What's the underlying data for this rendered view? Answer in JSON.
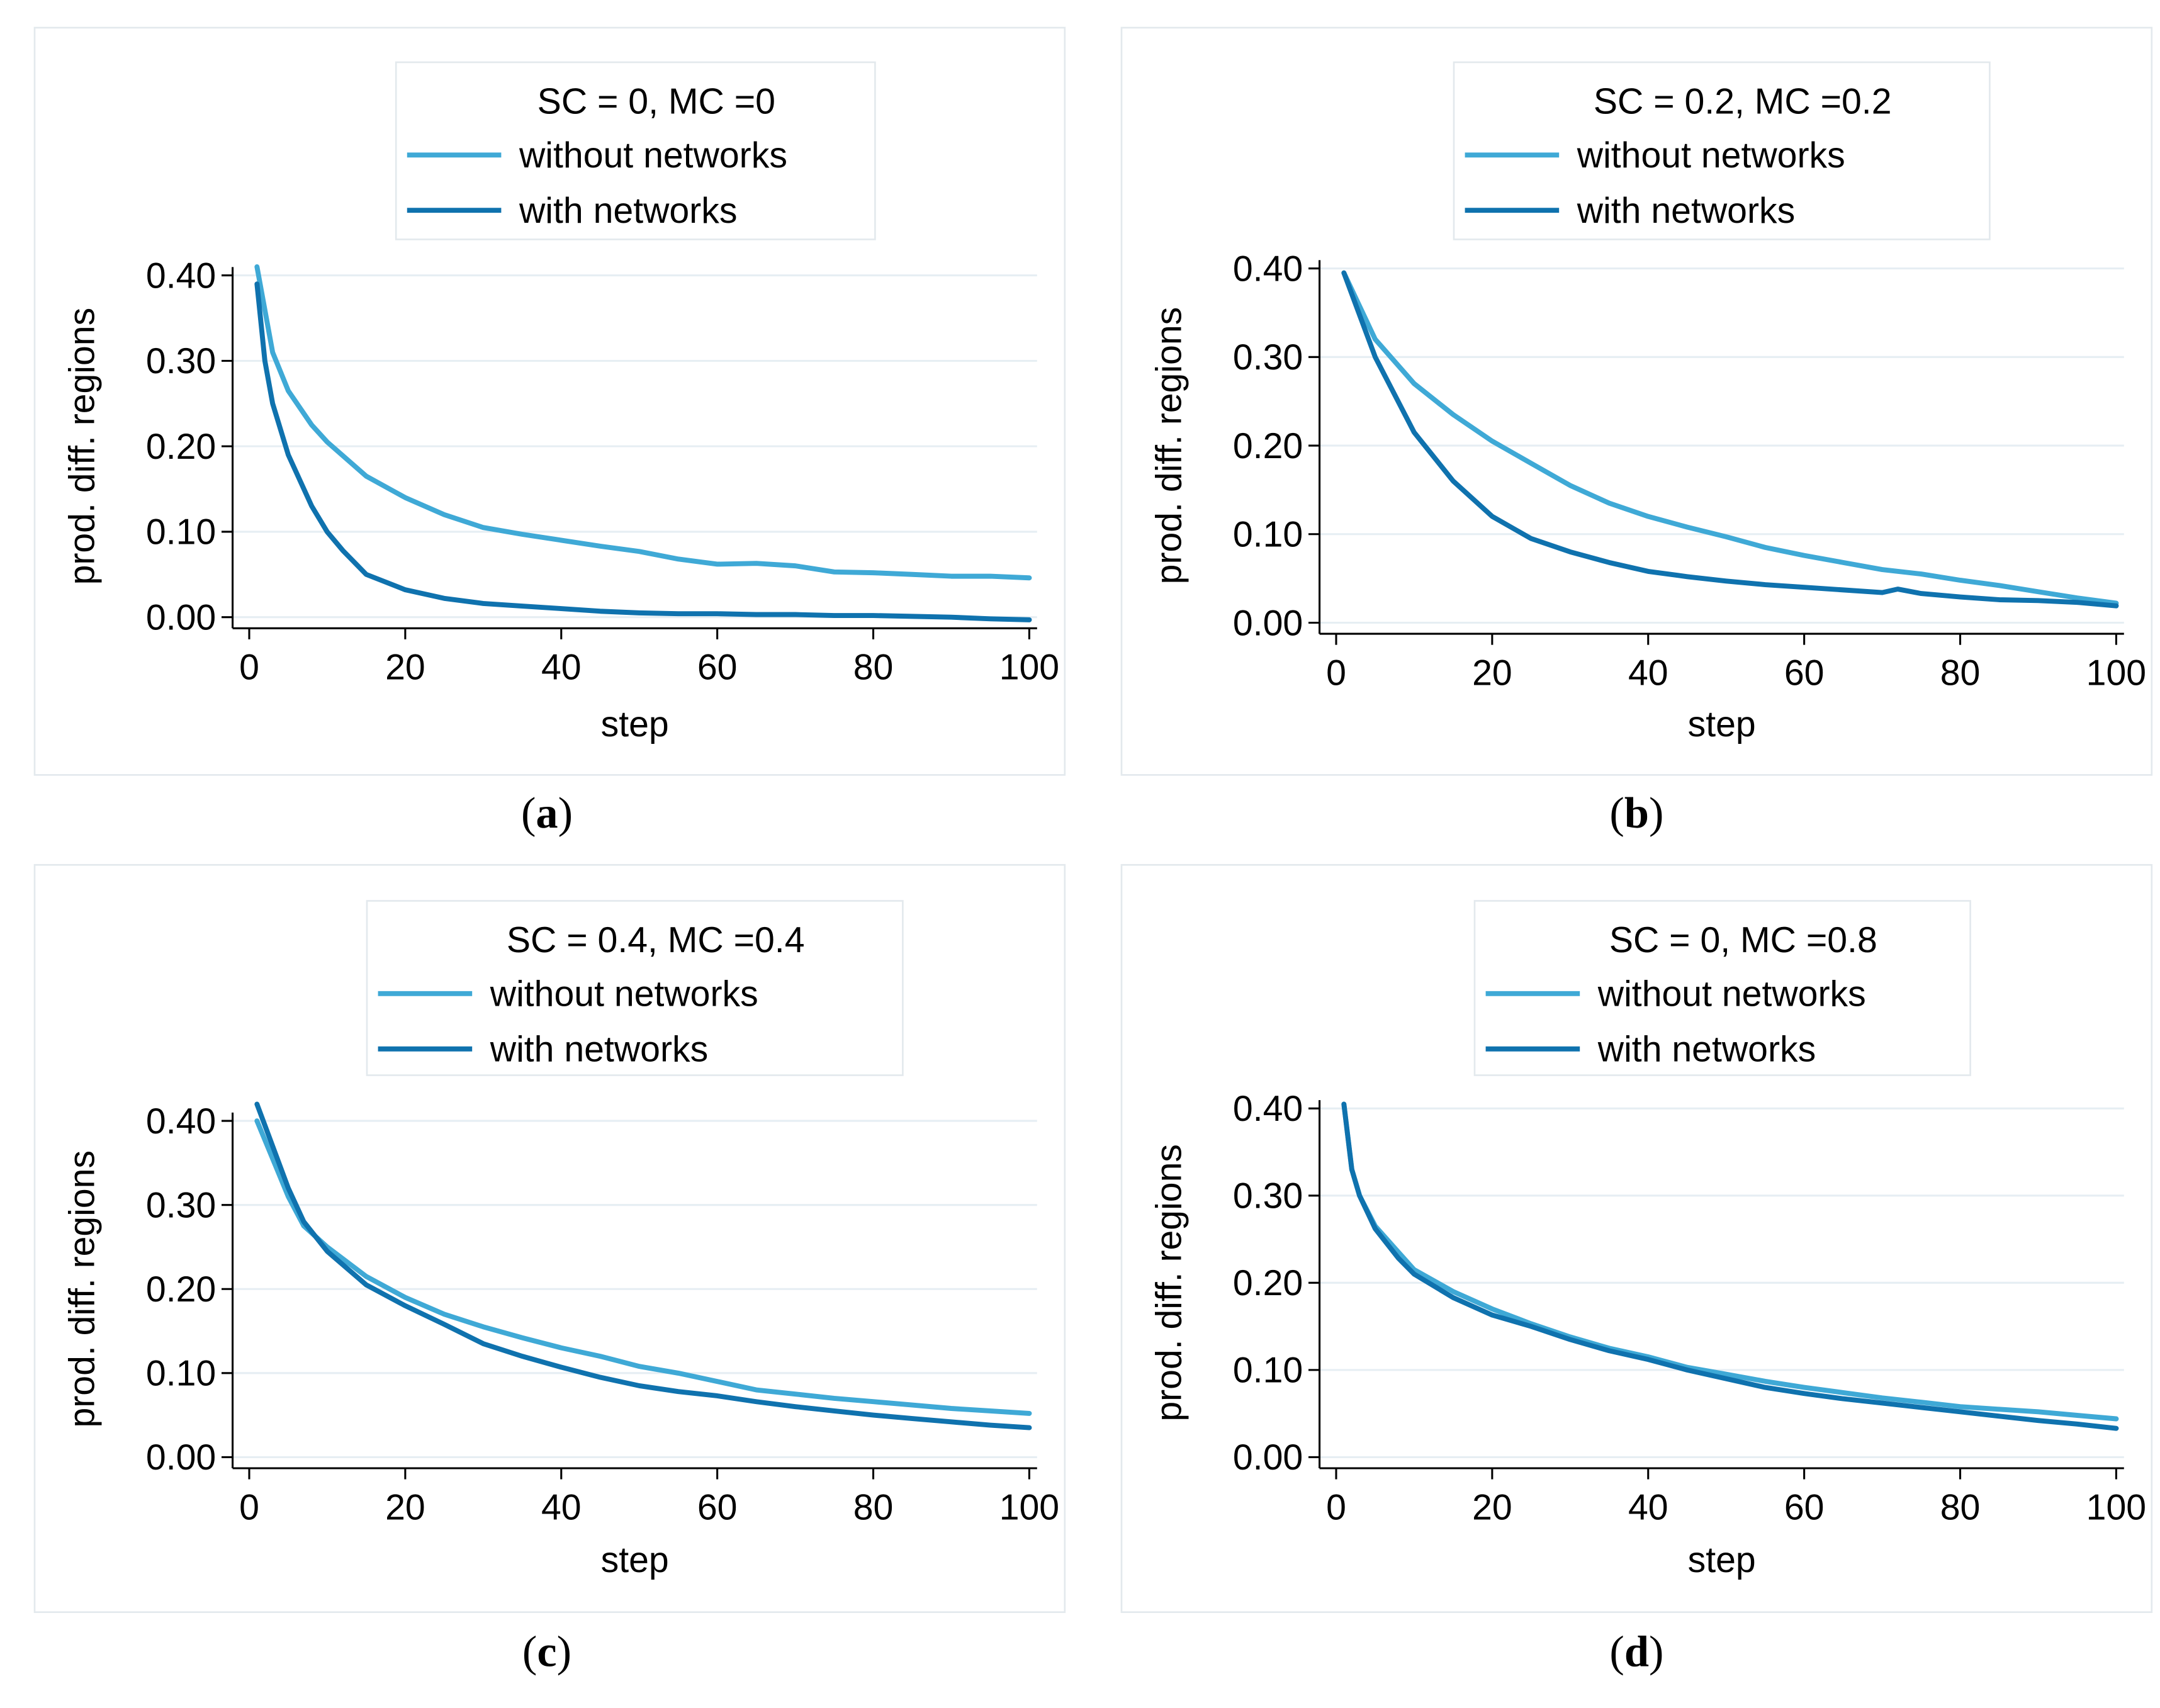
{
  "colors": {
    "without": "#3fa9d6",
    "with": "#0f72ae",
    "grid": "#e6eef3",
    "frame": "#e3e9ed",
    "axis": "#000000"
  },
  "chart_data": [
    {
      "type": "line",
      "panel_label_open": "(",
      "panel_label_letter": "a",
      "panel_label_close": ")",
      "legend_title": "SC = 0,  MC =0",
      "xlabel": "step",
      "ylabel": "prod. diff. regions",
      "xlim": [
        0,
        101
      ],
      "ylim": [
        0,
        0.4
      ],
      "xticks": [
        0,
        20,
        40,
        60,
        80,
        100
      ],
      "yticks": [
        0.0,
        0.1,
        0.2,
        0.3,
        0.4
      ],
      "ytick_labels": [
        "0.00",
        "0.10",
        "0.20",
        "0.30",
        "0.40"
      ],
      "series": [
        {
          "name": "without networks",
          "color_key": "without",
          "x": [
            1,
            3,
            5,
            8,
            10,
            15,
            20,
            25,
            30,
            35,
            40,
            45,
            50,
            55,
            60,
            65,
            70,
            75,
            80,
            85,
            90,
            95,
            100
          ],
          "y": [
            0.41,
            0.31,
            0.265,
            0.225,
            0.205,
            0.165,
            0.14,
            0.12,
            0.105,
            0.097,
            0.09,
            0.083,
            0.077,
            0.068,
            0.062,
            0.063,
            0.06,
            0.053,
            0.052,
            0.05,
            0.048,
            0.048,
            0.046
          ]
        },
        {
          "name": "with networks",
          "color_key": "with",
          "x": [
            1,
            2,
            3,
            5,
            8,
            10,
            12,
            15,
            20,
            25,
            30,
            35,
            40,
            45,
            50,
            55,
            60,
            65,
            70,
            75,
            80,
            85,
            90,
            95,
            100
          ],
          "y": [
            0.39,
            0.3,
            0.25,
            0.19,
            0.13,
            0.1,
            0.078,
            0.05,
            0.032,
            0.022,
            0.016,
            0.013,
            0.01,
            0.007,
            0.005,
            0.004,
            0.004,
            0.003,
            0.003,
            0.002,
            0.002,
            0.001,
            0.0,
            -0.002,
            -0.003
          ]
        }
      ]
    },
    {
      "type": "line",
      "panel_label_open": "(",
      "panel_label_letter": "b",
      "panel_label_close": ")",
      "legend_title": "SC = 0.2,  MC =0.2",
      "xlabel": "step",
      "ylabel": "prod. diff. regions",
      "xlim": [
        0,
        101
      ],
      "ylim": [
        0,
        0.4
      ],
      "xticks": [
        0,
        20,
        40,
        60,
        80,
        100
      ],
      "yticks": [
        0.0,
        0.1,
        0.2,
        0.3,
        0.4
      ],
      "ytick_labels": [
        "0.00",
        "0.10",
        "0.20",
        "0.30",
        "0.40"
      ],
      "series": [
        {
          "name": "without networks",
          "color_key": "without",
          "x": [
            1,
            5,
            10,
            15,
            20,
            25,
            30,
            35,
            40,
            45,
            50,
            55,
            60,
            65,
            70,
            75,
            80,
            85,
            90,
            95,
            100
          ],
          "y": [
            0.395,
            0.32,
            0.27,
            0.235,
            0.205,
            0.18,
            0.155,
            0.135,
            0.12,
            0.108,
            0.097,
            0.085,
            0.076,
            0.068,
            0.06,
            0.055,
            0.048,
            0.042,
            0.035,
            0.028,
            0.022
          ]
        },
        {
          "name": "with networks",
          "color_key": "with",
          "x": [
            1,
            5,
            10,
            15,
            20,
            25,
            30,
            35,
            40,
            45,
            50,
            55,
            60,
            65,
            70,
            72,
            75,
            80,
            85,
            90,
            95,
            100
          ],
          "y": [
            0.395,
            0.3,
            0.215,
            0.16,
            0.12,
            0.095,
            0.08,
            0.068,
            0.058,
            0.052,
            0.047,
            0.043,
            0.04,
            0.037,
            0.034,
            0.038,
            0.033,
            0.029,
            0.026,
            0.025,
            0.023,
            0.019
          ]
        }
      ]
    },
    {
      "type": "line",
      "panel_label_open": "(",
      "panel_label_letter": "c",
      "panel_label_close": ")",
      "legend_title": "SC = 0.4,  MC =0.4",
      "xlabel": "step",
      "ylabel": "prod. diff. regions",
      "xlim": [
        0,
        101
      ],
      "ylim": [
        0,
        0.4
      ],
      "xticks": [
        0,
        20,
        40,
        60,
        80,
        100
      ],
      "yticks": [
        0.0,
        0.1,
        0.2,
        0.3,
        0.4
      ],
      "ytick_labels": [
        "0.00",
        "0.10",
        "0.20",
        "0.30",
        "0.40"
      ],
      "series": [
        {
          "name": "without networks",
          "color_key": "without",
          "x": [
            1,
            3,
            5,
            7,
            10,
            15,
            20,
            25,
            30,
            35,
            40,
            45,
            50,
            55,
            60,
            65,
            70,
            75,
            80,
            85,
            90,
            95,
            100
          ],
          "y": [
            0.4,
            0.355,
            0.31,
            0.275,
            0.25,
            0.215,
            0.19,
            0.17,
            0.155,
            0.142,
            0.13,
            0.12,
            0.108,
            0.1,
            0.09,
            0.08,
            0.075,
            0.07,
            0.066,
            0.062,
            0.058,
            0.055,
            0.052
          ]
        },
        {
          "name": "with networks",
          "color_key": "with",
          "x": [
            1,
            3,
            5,
            7,
            10,
            15,
            20,
            25,
            30,
            35,
            40,
            45,
            50,
            55,
            60,
            65,
            70,
            75,
            80,
            85,
            90,
            95,
            100
          ],
          "y": [
            0.42,
            0.37,
            0.32,
            0.28,
            0.245,
            0.205,
            0.18,
            0.158,
            0.135,
            0.12,
            0.107,
            0.095,
            0.085,
            0.078,
            0.073,
            0.066,
            0.06,
            0.055,
            0.05,
            0.046,
            0.042,
            0.038,
            0.035
          ]
        }
      ]
    },
    {
      "type": "line",
      "panel_label_open": "(",
      "panel_label_letter": "d",
      "panel_label_close": ")",
      "legend_title": "SC = 0,  MC =0.8",
      "xlabel": "step",
      "ylabel": "prod. diff. regions",
      "xlim": [
        0,
        101
      ],
      "ylim": [
        0,
        0.4
      ],
      "xticks": [
        0,
        20,
        40,
        60,
        80,
        100
      ],
      "yticks": [
        0.0,
        0.1,
        0.2,
        0.3,
        0.4
      ],
      "ytick_labels": [
        "0.00",
        "0.10",
        "0.20",
        "0.30",
        "0.40"
      ],
      "series": [
        {
          "name": "without networks",
          "color_key": "without",
          "x": [
            1,
            2,
            3,
            5,
            8,
            10,
            15,
            20,
            25,
            30,
            35,
            40,
            45,
            50,
            55,
            60,
            65,
            70,
            75,
            80,
            85,
            90,
            95,
            100
          ],
          "y": [
            0.405,
            0.33,
            0.3,
            0.265,
            0.235,
            0.215,
            0.19,
            0.17,
            0.153,
            0.138,
            0.125,
            0.115,
            0.103,
            0.095,
            0.087,
            0.08,
            0.074,
            0.068,
            0.063,
            0.058,
            0.055,
            0.052,
            0.048,
            0.044
          ]
        },
        {
          "name": "with networks",
          "color_key": "with",
          "x": [
            1,
            2,
            3,
            5,
            8,
            10,
            15,
            20,
            25,
            30,
            35,
            40,
            45,
            50,
            55,
            60,
            65,
            70,
            75,
            80,
            85,
            90,
            95,
            100
          ],
          "y": [
            0.405,
            0.33,
            0.3,
            0.262,
            0.228,
            0.21,
            0.183,
            0.163,
            0.15,
            0.135,
            0.122,
            0.112,
            0.1,
            0.09,
            0.08,
            0.073,
            0.067,
            0.062,
            0.057,
            0.052,
            0.047,
            0.042,
            0.038,
            0.033
          ]
        }
      ]
    }
  ]
}
